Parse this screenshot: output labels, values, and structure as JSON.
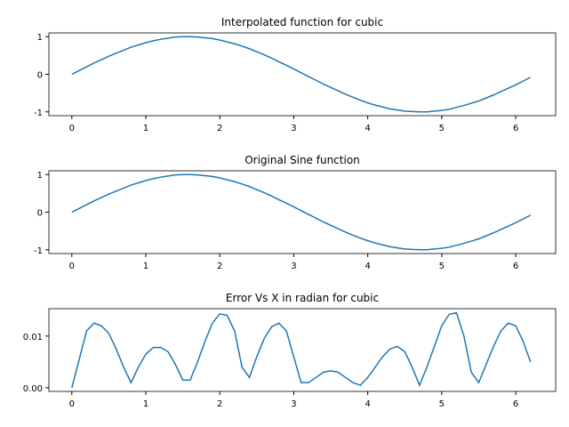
{
  "chart_data": [
    {
      "type": "line",
      "title": "Interpolated function for cubic",
      "x": [
        0,
        0.1,
        0.2,
        0.3,
        0.4,
        0.5,
        0.6,
        0.7,
        0.8,
        0.9,
        1.0,
        1.1,
        1.2,
        1.3,
        1.4,
        1.5,
        1.6,
        1.7,
        1.8,
        1.9,
        2.0,
        2.1,
        2.2,
        2.3,
        2.4,
        2.5,
        2.6,
        2.7,
        2.8,
        2.9,
        3.0,
        3.1,
        3.2,
        3.3,
        3.4,
        3.5,
        3.6,
        3.7,
        3.8,
        3.9,
        4.0,
        4.1,
        4.2,
        4.3,
        4.4,
        4.5,
        4.6,
        4.7,
        4.8,
        4.9,
        5.0,
        5.1,
        5.2,
        5.3,
        5.4,
        5.5,
        5.6,
        5.7,
        5.8,
        5.9,
        6.0,
        6.1,
        6.2
      ],
      "series": [
        {
          "color": "#1f77b4",
          "values": [
            0,
            0.1,
            0.2,
            0.3,
            0.39,
            0.48,
            0.56,
            0.64,
            0.72,
            0.78,
            0.84,
            0.89,
            0.93,
            0.96,
            0.99,
            1.0,
            1.0,
            0.99,
            0.97,
            0.95,
            0.91,
            0.86,
            0.81,
            0.75,
            0.68,
            0.6,
            0.52,
            0.43,
            0.33,
            0.24,
            0.14,
            0.04,
            -0.06,
            -0.16,
            -0.26,
            -0.35,
            -0.44,
            -0.53,
            -0.61,
            -0.69,
            -0.76,
            -0.82,
            -0.87,
            -0.92,
            -0.95,
            -0.98,
            -0.99,
            -1.0,
            -1.0,
            -0.98,
            -0.96,
            -0.93,
            -0.88,
            -0.83,
            -0.77,
            -0.71,
            -0.63,
            -0.55,
            -0.46,
            -0.37,
            -0.28,
            -0.18,
            -0.08
          ]
        }
      ],
      "xlim": [
        -0.31,
        6.54
      ],
      "xticks": [
        0,
        1,
        2,
        3,
        4,
        5,
        6
      ],
      "ylim": [
        -1.1,
        1.1
      ],
      "yticks": [
        -1,
        0,
        1
      ]
    },
    {
      "type": "line",
      "title": "Original Sine function",
      "x": [
        0,
        0.1,
        0.2,
        0.3,
        0.4,
        0.5,
        0.6,
        0.7,
        0.8,
        0.9,
        1.0,
        1.1,
        1.2,
        1.3,
        1.4,
        1.5,
        1.6,
        1.7,
        1.8,
        1.9,
        2.0,
        2.1,
        2.2,
        2.3,
        2.4,
        2.5,
        2.6,
        2.7,
        2.8,
        2.9,
        3.0,
        3.1,
        3.2,
        3.3,
        3.4,
        3.5,
        3.6,
        3.7,
        3.8,
        3.9,
        4.0,
        4.1,
        4.2,
        4.3,
        4.4,
        4.5,
        4.6,
        4.7,
        4.8,
        4.9,
        5.0,
        5.1,
        5.2,
        5.3,
        5.4,
        5.5,
        5.6,
        5.7,
        5.8,
        5.9,
        6.0,
        6.1,
        6.2
      ],
      "series": [
        {
          "color": "#1f77b4",
          "values": [
            0,
            0.1,
            0.2,
            0.3,
            0.39,
            0.48,
            0.56,
            0.64,
            0.72,
            0.78,
            0.84,
            0.89,
            0.93,
            0.96,
            0.99,
            1.0,
            1.0,
            0.99,
            0.97,
            0.95,
            0.91,
            0.86,
            0.81,
            0.75,
            0.68,
            0.6,
            0.52,
            0.43,
            0.33,
            0.24,
            0.14,
            0.04,
            -0.06,
            -0.16,
            -0.26,
            -0.35,
            -0.44,
            -0.53,
            -0.61,
            -0.69,
            -0.76,
            -0.82,
            -0.87,
            -0.92,
            -0.95,
            -0.98,
            -0.99,
            -1.0,
            -1.0,
            -0.98,
            -0.96,
            -0.93,
            -0.88,
            -0.83,
            -0.77,
            -0.71,
            -0.63,
            -0.55,
            -0.46,
            -0.37,
            -0.28,
            -0.18,
            -0.08
          ]
        }
      ],
      "xlim": [
        -0.31,
        6.54
      ],
      "xticks": [
        0,
        1,
        2,
        3,
        4,
        5,
        6
      ],
      "ylim": [
        -1.1,
        1.1
      ],
      "yticks": [
        -1,
        0,
        1
      ]
    },
    {
      "type": "line",
      "title": "Error Vs X in radian for cubic",
      "x": [
        0,
        0.1,
        0.2,
        0.3,
        0.4,
        0.5,
        0.6,
        0.7,
        0.8,
        0.9,
        1.0,
        1.1,
        1.2,
        1.3,
        1.4,
        1.5,
        1.6,
        1.7,
        1.8,
        1.9,
        2.0,
        2.1,
        2.2,
        2.3,
        2.4,
        2.5,
        2.6,
        2.7,
        2.8,
        2.9,
        3.0,
        3.1,
        3.2,
        3.3,
        3.4,
        3.5,
        3.6,
        3.7,
        3.8,
        3.9,
        4.0,
        4.1,
        4.2,
        4.3,
        4.4,
        4.5,
        4.6,
        4.7,
        4.8,
        4.9,
        5.0,
        5.1,
        5.2,
        5.3,
        5.4,
        5.5,
        5.6,
        5.7,
        5.8,
        5.9,
        6.0,
        6.1,
        6.2
      ],
      "series": [
        {
          "color": "#1f77b4",
          "values": [
            0,
            0.0055,
            0.011,
            0.0125,
            0.012,
            0.0105,
            0.0075,
            0.004,
            0.001,
            0.004,
            0.0065,
            0.0078,
            0.0078,
            0.007,
            0.0045,
            0.0015,
            0.0015,
            0.005,
            0.009,
            0.0125,
            0.0143,
            0.014,
            0.011,
            0.004,
            0.002,
            0.006,
            0.0095,
            0.0118,
            0.0125,
            0.011,
            0.006,
            0.001,
            0.001,
            0.002,
            0.003,
            0.0033,
            0.003,
            0.002,
            0.001,
            0.0005,
            0.002,
            0.004,
            0.006,
            0.0075,
            0.008,
            0.007,
            0.004,
            0.0005,
            0.004,
            0.008,
            0.012,
            0.0142,
            0.0145,
            0.01,
            0.003,
            0.001,
            0.0045,
            0.008,
            0.011,
            0.0125,
            0.012,
            0.009,
            0.005
          ]
        }
      ],
      "xlim": [
        -0.31,
        6.54
      ],
      "xticks": [
        0,
        1,
        2,
        3,
        4,
        5,
        6
      ],
      "ylim": [
        -0.0007,
        0.0153
      ],
      "yticks": [
        {
          "value": 0,
          "label": "0.00"
        },
        {
          "value": 0.01,
          "label": "0.01"
        }
      ]
    }
  ]
}
